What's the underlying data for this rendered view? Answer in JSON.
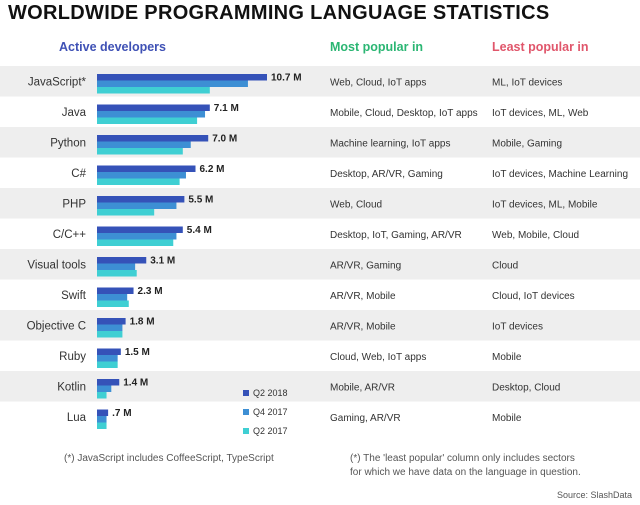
{
  "title": "WORLDWIDE PROGRAMMING LANGUAGE STATISTICS",
  "headers": {
    "active": "Active developers",
    "most": "Most popular in",
    "least": "Least popular in"
  },
  "colors": {
    "q2_2018": "#3552b8",
    "q4_2017": "#3d8fd4",
    "q2_2017": "#3fcfd3",
    "active_header": "#3f51b5",
    "most_header": "#2bb673",
    "least_header": "#e0566b",
    "row_band": "#eeeeee"
  },
  "chart_data": {
    "type": "bar",
    "orientation": "horizontal",
    "categories": [
      "JavaScript*",
      "Java",
      "Python",
      "C#",
      "PHP",
      "C/C++",
      "Visual tools",
      "Swift",
      "Objective C",
      "Ruby",
      "Kotlin",
      "Lua"
    ],
    "value_labels": [
      "10.7 M",
      "7.1 M",
      "7.0 M",
      "6.2 M",
      "5.5 M",
      "5.4 M",
      "3.1 M",
      "2.3 M",
      "1.8 M",
      "1.5 M",
      "1.4 M",
      ".7 M"
    ],
    "series": [
      {
        "name": "Q2 2018",
        "values": [
          10.7,
          7.1,
          7.0,
          6.2,
          5.5,
          5.4,
          3.1,
          2.3,
          1.8,
          1.5,
          1.4,
          0.7
        ]
      },
      {
        "name": "Q4 2017",
        "values": [
          9.5,
          6.8,
          5.9,
          5.6,
          5.0,
          5.0,
          2.4,
          1.9,
          1.6,
          1.3,
          0.9,
          0.6
        ]
      },
      {
        "name": "Q2 2017",
        "values": [
          7.1,
          6.3,
          5.4,
          5.2,
          3.6,
          4.8,
          2.5,
          2.0,
          1.6,
          1.3,
          0.6,
          0.6
        ]
      }
    ],
    "most_popular": [
      "Web, Cloud, IoT apps",
      "Mobile, Cloud, Desktop, IoT apps",
      "Machine learning, IoT apps",
      "Desktop, AR/VR, Gaming",
      "Web, Cloud",
      "Desktop, IoT, Gaming, AR/VR",
      "AR/VR, Gaming",
      "AR/VR, Mobile",
      "AR/VR, Mobile",
      "Cloud, Web, IoT apps",
      "Mobile, AR/VR",
      "Gaming, AR/VR"
    ],
    "least_popular": [
      "ML, IoT devices",
      "IoT devices, ML, Web",
      "Mobile, Gaming",
      "IoT devices, Machine Learning",
      "IoT devices, ML, Mobile",
      "Web, Mobile, Cloud",
      "Cloud",
      "Cloud, IoT devices",
      "IoT devices",
      "Mobile",
      "Desktop, Cloud",
      "Mobile"
    ],
    "xlim": [
      0,
      10.7
    ],
    "legend_position": "bottom-right of bars"
  },
  "footnotes": {
    "left": "(*) JavaScript includes CoffeeScript, TypeScript",
    "right_line1": "(*) The 'least popular' column only includes sectors",
    "right_line2": "for which we have data on the language in question."
  },
  "source": "Source: SlashData"
}
